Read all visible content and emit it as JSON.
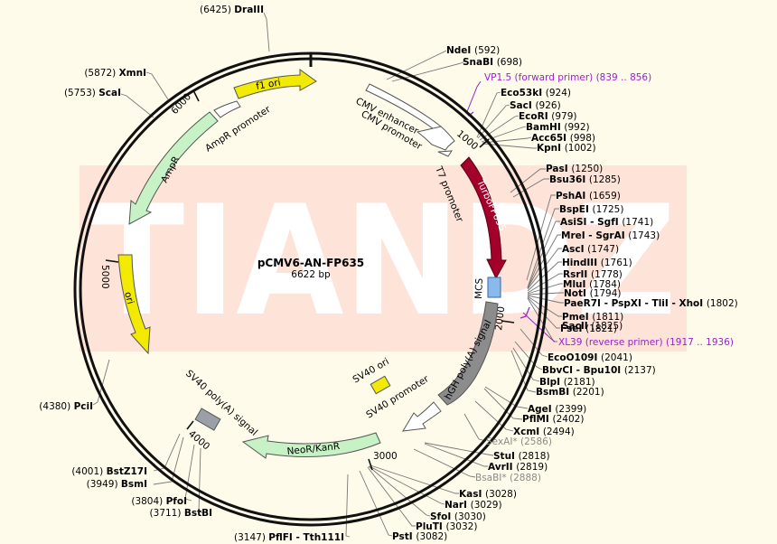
{
  "plasmid": {
    "name": "pCMV6-AN-FP635",
    "size_label": "6622 bp",
    "watermark": "TIANDZ"
  },
  "colors": {
    "background": "#fffbea",
    "watermark_box": "#fde3d8",
    "backbone": "#111111",
    "primer": "#9a22cc",
    "site_gray": "#8a8a8a"
  },
  "ticks": [
    {
      "label": "1000"
    },
    {
      "label": "2000"
    },
    {
      "label": "3000"
    },
    {
      "label": "4000"
    },
    {
      "label": "5000"
    },
    {
      "label": "6000"
    }
  ],
  "features": [
    {
      "id": "cmv-enhancer",
      "label": "CMV enhancer",
      "color": "#ffffff"
    },
    {
      "id": "cmv-promoter",
      "label": "CMV promoter",
      "color": "#ffffff"
    },
    {
      "id": "t7-promoter",
      "label": "T7 promoter",
      "color": "#ffffff"
    },
    {
      "id": "turbofp635",
      "label": "TurboFP635",
      "color": "#a3002a"
    },
    {
      "id": "mcs",
      "label": "MCS",
      "color": "#8ab9ec"
    },
    {
      "id": "hgh-polya",
      "label": "hGH poly(A) signal",
      "color": "#8c8c8c"
    },
    {
      "id": "sv40-promoter",
      "label": "SV40 promoter",
      "color": "#ffffff"
    },
    {
      "id": "neor-kanr",
      "label": "NeoR/KanR",
      "color": "#c6f2c6"
    },
    {
      "id": "sv40-polya",
      "label": "SV40 poly(A) signal",
      "color": "#9aa0a6"
    },
    {
      "id": "sv40-ori",
      "label": "SV40 ori",
      "color": "#f2ea00"
    },
    {
      "id": "ori",
      "label": "ori",
      "color": "#f2ea00"
    },
    {
      "id": "ampr",
      "label": "AmpR",
      "color": "#c6f2c6"
    },
    {
      "id": "ampr-promoter",
      "label": "AmpR promoter",
      "color": "#ffffff"
    },
    {
      "id": "f1-ori",
      "label": "f1 ori",
      "color": "#f2ea00"
    }
  ],
  "primers": [
    {
      "label": "VP1.5 (forward primer)  (839 .. 856)"
    },
    {
      "label": "XL39 (reverse primer)  (1917 .. 1936)"
    }
  ],
  "sites": [
    {
      "name": "DraIII",
      "pos": "(6425)",
      "gray": false
    },
    {
      "name": "XmnI",
      "pos": "(5872)",
      "gray": false
    },
    {
      "name": "ScaI",
      "pos": "(5753)",
      "gray": false
    },
    {
      "name": "PciI",
      "pos": "(4380)",
      "gray": false
    },
    {
      "name": "BstZ17I",
      "pos": "(4001)",
      "gray": false
    },
    {
      "name": "BsmI",
      "pos": "(3949)",
      "gray": false
    },
    {
      "name": "PfoI",
      "pos": "(3804)",
      "gray": false
    },
    {
      "name": "BstBI",
      "pos": "(3711)",
      "gray": false
    },
    {
      "name": "PflFI - Tth111I",
      "pos": "(3147)",
      "gray": false
    },
    {
      "name": "NdeI",
      "pos": "(592)",
      "gray": false
    },
    {
      "name": "SnaBI",
      "pos": "(698)",
      "gray": false
    },
    {
      "name": "Eco53kI",
      "pos": "(924)",
      "gray": false
    },
    {
      "name": "SacI",
      "pos": "(926)",
      "gray": false
    },
    {
      "name": "EcoRI",
      "pos": "(979)",
      "gray": false
    },
    {
      "name": "BamHI",
      "pos": "(992)",
      "gray": false
    },
    {
      "name": "Acc65I",
      "pos": "(998)",
      "gray": false
    },
    {
      "name": "KpnI",
      "pos": "(1002)",
      "gray": false
    },
    {
      "name": "PasI",
      "pos": "(1250)",
      "gray": false
    },
    {
      "name": "Bsu36I",
      "pos": "(1285)",
      "gray": false
    },
    {
      "name": "PshAI",
      "pos": "(1659)",
      "gray": false
    },
    {
      "name": "BspEI",
      "pos": "(1725)",
      "gray": false
    },
    {
      "name": "AsiSI - SgfI",
      "pos": "(1741)",
      "gray": false
    },
    {
      "name": "MreI - SgrAI",
      "pos": "(1743)",
      "gray": false
    },
    {
      "name": "AscI",
      "pos": "(1747)",
      "gray": false
    },
    {
      "name": "HindIII",
      "pos": "(1761)",
      "gray": false
    },
    {
      "name": "RsrII",
      "pos": "(1778)",
      "gray": false
    },
    {
      "name": "MluI",
      "pos": "(1784)",
      "gray": false
    },
    {
      "name": "NotI",
      "pos": "(1794)",
      "gray": false
    },
    {
      "name": "PaeR7I - PspXI - TliI - XhoI",
      "pos": "(1802)",
      "gray": false
    },
    {
      "name": "PmeI",
      "pos": "(1811)",
      "gray": false
    },
    {
      "name": "FseI",
      "pos": "(1821)",
      "gray": false
    },
    {
      "name": "SacII",
      "pos": "(1825)",
      "gray": false
    },
    {
      "name": "EcoO109I",
      "pos": "(2041)",
      "gray": false
    },
    {
      "name": "BbvCI - Bpu10I",
      "pos": "(2137)",
      "gray": false
    },
    {
      "name": "BlpI",
      "pos": "(2181)",
      "gray": false
    },
    {
      "name": "BsmBI",
      "pos": "(2201)",
      "gray": false
    },
    {
      "name": "AgeI",
      "pos": "(2399)",
      "gray": false
    },
    {
      "name": "PflMI",
      "pos": "(2402)",
      "gray": false
    },
    {
      "name": "XcmI",
      "pos": "(2494)",
      "gray": false
    },
    {
      "name": "SexAI*",
      "pos": "(2586)",
      "gray": true
    },
    {
      "name": "StuI",
      "pos": "(2818)",
      "gray": false
    },
    {
      "name": "AvrII",
      "pos": "(2819)",
      "gray": false
    },
    {
      "name": "BsaBI*",
      "pos": "(2888)",
      "gray": true
    },
    {
      "name": "KasI",
      "pos": "(3028)",
      "gray": false
    },
    {
      "name": "NarI",
      "pos": "(3029)",
      "gray": false
    },
    {
      "name": "SfoI",
      "pos": "(3030)",
      "gray": false
    },
    {
      "name": "PluTI",
      "pos": "(3032)",
      "gray": false
    },
    {
      "name": "PstI",
      "pos": "(3082)",
      "gray": false
    }
  ]
}
